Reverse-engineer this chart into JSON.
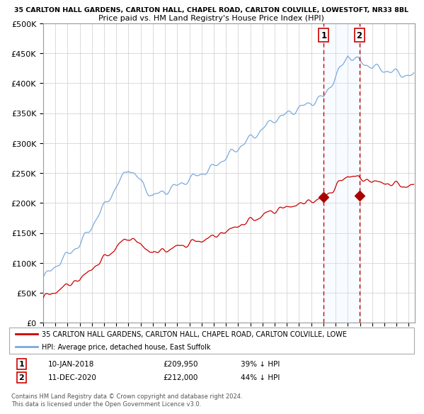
{
  "title_line1": "35 CARLTON HALL GARDENS, CARLTON HALL, CHAPEL ROAD, CARLTON COLVILLE, LOWESTOFT, NR33 8BL",
  "title_line2": "Price paid vs. HM Land Registry's House Price Index (HPI)",
  "ylim": [
    0,
    500000
  ],
  "yticks": [
    0,
    50000,
    100000,
    150000,
    200000,
    250000,
    300000,
    350000,
    400000,
    450000,
    500000
  ],
  "ytick_labels": [
    "£0",
    "£50K",
    "£100K",
    "£150K",
    "£200K",
    "£250K",
    "£300K",
    "£350K",
    "£400K",
    "£450K",
    "£500K"
  ],
  "hpi_color": "#7aaadd",
  "price_color": "#cc0000",
  "marker_color": "#aa0000",
  "shade_color": "#ddeeff",
  "sale1_date_num": 2018.03,
  "sale1_price": 209950,
  "sale2_date_num": 2020.95,
  "sale2_price": 212000,
  "legend_label1": "35 CARLTON HALL GARDENS, CARLTON HALL, CHAPEL ROAD, CARLTON COLVILLE, LOWE",
  "legend_label2": "HPI: Average price, detached house, East Suffolk",
  "footer": "Contains HM Land Registry data © Crown copyright and database right 2024.\nThis data is licensed under the Open Government Licence v3.0.",
  "xstart": 1995.0,
  "xend": 2025.5
}
